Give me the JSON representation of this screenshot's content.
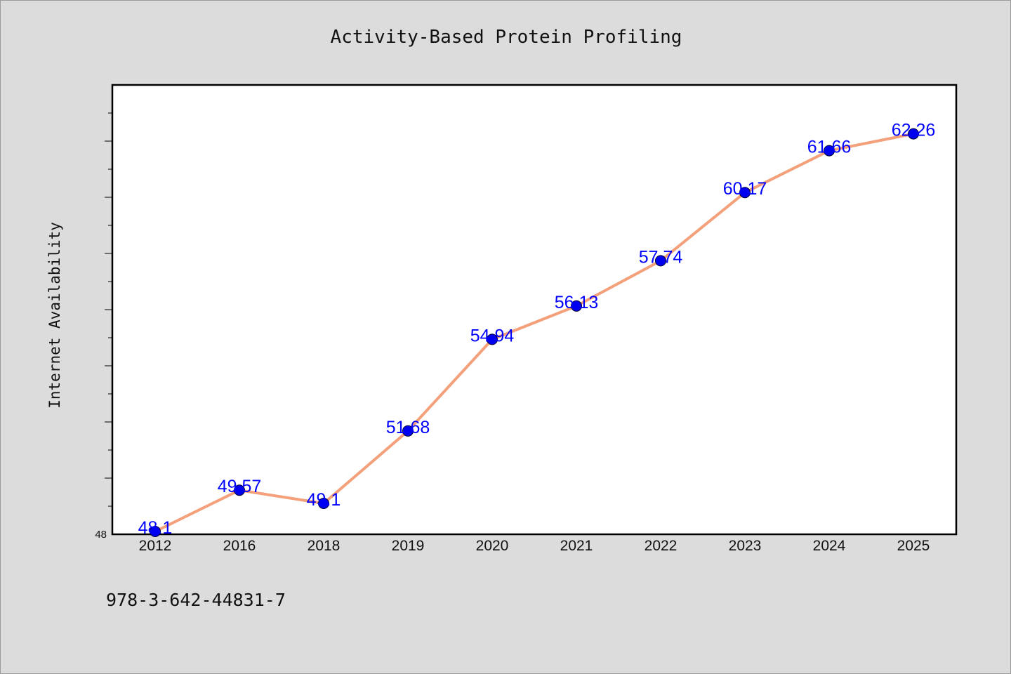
{
  "chart_data": {
    "type": "line",
    "title": "Activity-Based Protein Profiling",
    "ylabel": "Internet Availability",
    "xlabel": "",
    "categories": [
      "2012",
      "2016",
      "2018",
      "2019",
      "2020",
      "2021",
      "2022",
      "2023",
      "2024",
      "2025"
    ],
    "series": [
      {
        "values": [
          48.1,
          49.57,
          49.1,
          51.68,
          54.94,
          56.13,
          57.74,
          60.17,
          61.66,
          62.26
        ],
        "labels": [
          "48.1",
          "49.57",
          "49.1",
          "51.68",
          "54.94",
          "56.13",
          "57.74",
          "60.17",
          "61.66",
          "62.26"
        ],
        "line_color": "#f4a07a",
        "marker_color": "#0000ee"
      }
    ],
    "ylim": [
      48,
      64
    ],
    "yticks_labeled": [
      "48"
    ],
    "grid": false,
    "legend": "none"
  },
  "footer": {
    "isbn": "978-3-642-44831-7"
  }
}
